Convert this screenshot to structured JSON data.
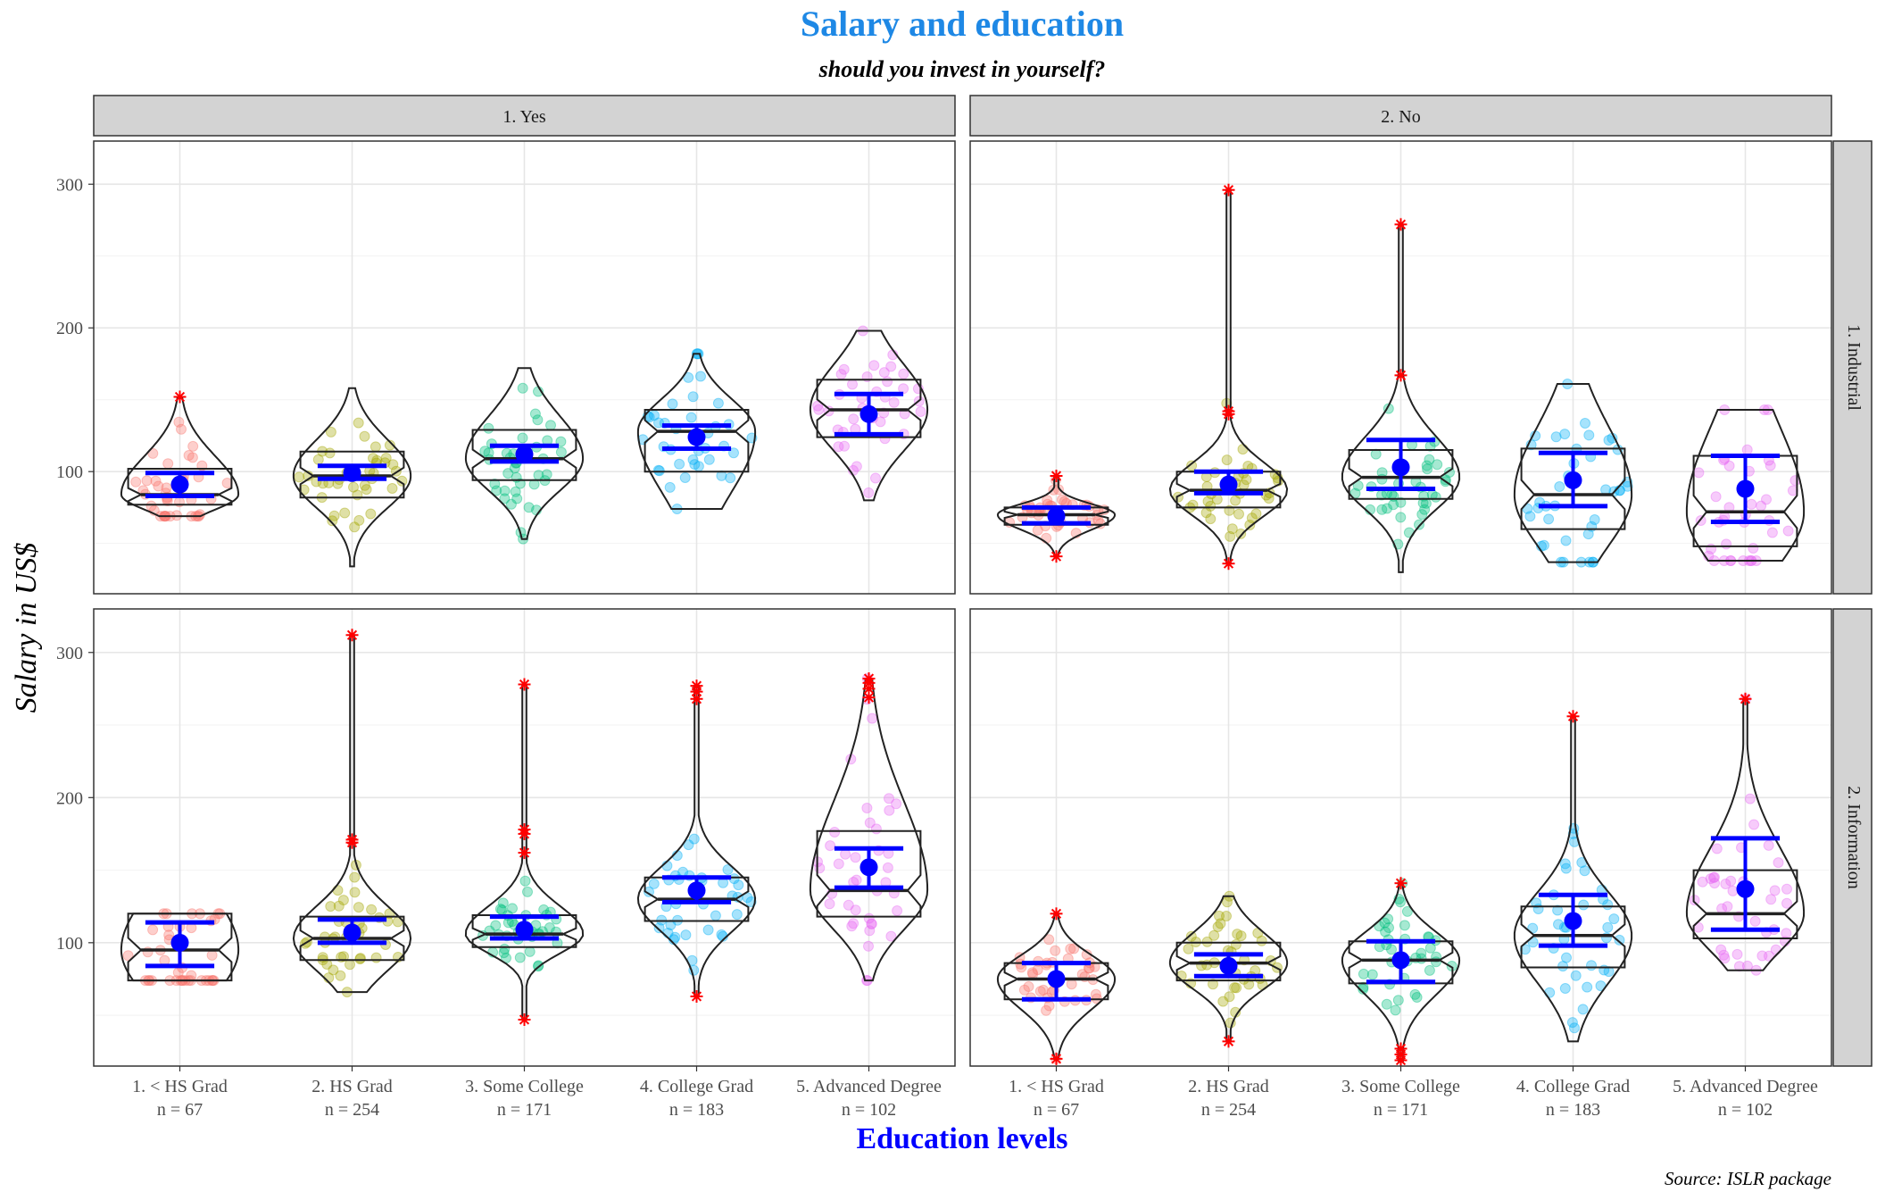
{
  "chart_data": {
    "type": "violin",
    "title": "Salary and education",
    "subtitle": "should you invest in yourself?",
    "xlabel": "Education levels",
    "ylabel": "Salary in US$",
    "caption": "Source: ISLR package",
    "ylim": [
      15,
      330
    ],
    "y_ticks": [
      100,
      200,
      300
    ],
    "grid": true,
    "legend": "none",
    "colors": {
      "title": "#1e88e5",
      "xlabel": "#0000ff",
      "stats": "#0000ff",
      "outlier": "#ff0000",
      "strip_fill": "#d3d3d3",
      "grid": "#ebebeb",
      "categories": [
        "#f8766d",
        "#a3a500",
        "#00bf7d",
        "#00b0f6",
        "#e76bf3"
      ]
    },
    "col_facets": [
      "1. Yes",
      "2. No"
    ],
    "row_facets": [
      "1. Industrial",
      "2. Information"
    ],
    "categories": [
      "1. < HS Grad",
      "2. HS Grad",
      "3. Some College",
      "4. College Grad",
      "5. Advanced Degree"
    ],
    "category_counts": [
      "n =  67",
      "n =  254",
      "n =  171",
      "n =  183",
      "n =  102"
    ],
    "panels": [
      {
        "col": "1. Yes",
        "row": "1. Industrial",
        "groups": [
          {
            "category": "1. < HS Grad",
            "min": 69,
            "max": 152,
            "q1": 77,
            "median": 84,
            "q3": 102,
            "mean": 91,
            "ci": [
              83,
              99
            ],
            "outliers": [
              152
            ]
          },
          {
            "category": "2. HS Grad",
            "min": 34,
            "max": 158,
            "q1": 82,
            "median": 97,
            "q3": 114,
            "mean": 99,
            "ci": [
              95,
              104
            ],
            "outliers": []
          },
          {
            "category": "3. Some College",
            "min": 53,
            "max": 172,
            "q1": 94,
            "median": 109,
            "q3": 129,
            "mean": 112,
            "ci": [
              107,
              118
            ],
            "outliers": []
          },
          {
            "category": "4. College Grad",
            "min": 74,
            "max": 182,
            "q1": 100,
            "median": 128,
            "q3": 143,
            "mean": 124,
            "ci": [
              116,
              132
            ],
            "outliers": []
          },
          {
            "category": "5. Advanced Degree",
            "min": 80,
            "max": 198,
            "q1": 124,
            "median": 143,
            "q3": 164,
            "mean": 140,
            "ci": [
              126,
              154
            ],
            "outliers": []
          }
        ]
      },
      {
        "col": "2. No",
        "row": "1. Industrial",
        "groups": [
          {
            "category": "1. < HS Grad",
            "min": 41,
            "max": 97,
            "q1": 63,
            "median": 70,
            "q3": 75,
            "mean": 69,
            "ci": [
              64,
              75
            ],
            "outliers": [
              41,
              97
            ]
          },
          {
            "category": "2. HS Grad",
            "min": 36,
            "max": 296,
            "q1": 75,
            "median": 87,
            "q3": 100,
            "mean": 91,
            "ci": [
              85,
              100
            ],
            "outliers": [
              36,
              140,
              142,
              296
            ]
          },
          {
            "category": "3. Some College",
            "min": 30,
            "max": 272,
            "q1": 81,
            "median": 96,
            "q3": 115,
            "mean": 103,
            "ci": [
              88,
              122
            ],
            "outliers": [
              167,
              272
            ]
          },
          {
            "category": "4. College Grad",
            "min": 37,
            "max": 161,
            "q1": 60,
            "median": 84,
            "q3": 116,
            "mean": 94,
            "ci": [
              76,
              113
            ],
            "outliers": []
          },
          {
            "category": "5. Advanced Degree",
            "min": 38,
            "max": 143,
            "q1": 48,
            "median": 72,
            "q3": 111,
            "mean": 88,
            "ci": [
              65,
              111
            ],
            "outliers": []
          }
        ]
      },
      {
        "col": "1. Yes",
        "row": "2. Information",
        "groups": [
          {
            "category": "1. < HS Grad",
            "min": 74,
            "max": 120,
            "q1": 74,
            "median": 95,
            "q3": 120,
            "mean": 100,
            "ci": [
              84,
              114
            ],
            "outliers": []
          },
          {
            "category": "2. HS Grad",
            "min": 66,
            "max": 312,
            "q1": 88,
            "median": 103,
            "q3": 118,
            "mean": 107,
            "ci": [
              100,
              116
            ],
            "outliers": [
              169,
              171,
              312
            ]
          },
          {
            "category": "3. Some College",
            "min": 47,
            "max": 278,
            "q1": 97,
            "median": 106,
            "q3": 119,
            "mean": 109,
            "ci": [
              103,
              118
            ],
            "outliers": [
              47,
              162,
              175,
              178,
              278
            ]
          },
          {
            "category": "4. College Grad",
            "min": 63,
            "max": 277,
            "q1": 115,
            "median": 130,
            "q3": 145,
            "mean": 136,
            "ci": [
              128,
              145
            ],
            "outliers": [
              63,
              268,
              273,
              277
            ]
          },
          {
            "category": "5. Advanced Degree",
            "min": 74,
            "max": 282,
            "q1": 118,
            "median": 136,
            "q3": 177,
            "mean": 152,
            "ci": [
              138,
              165
            ],
            "outliers": [
              269,
              275,
              279,
              282
            ]
          }
        ]
      },
      {
        "col": "2. No",
        "row": "2. Information",
        "groups": [
          {
            "category": "1. < HS Grad",
            "min": 20,
            "max": 120,
            "q1": 61,
            "median": 75,
            "q3": 86,
            "mean": 75,
            "ci": [
              61,
              86
            ],
            "outliers": [
              20,
              120
            ]
          },
          {
            "category": "2. HS Grad",
            "min": 32,
            "max": 132,
            "q1": 74,
            "median": 86,
            "q3": 100,
            "mean": 84,
            "ci": [
              77,
              92
            ],
            "outliers": [
              32
            ]
          },
          {
            "category": "3. Some College",
            "min": 18,
            "max": 141,
            "q1": 72,
            "median": 88,
            "q3": 101,
            "mean": 88,
            "ci": [
              73,
              101
            ],
            "outliers": [
              19,
              23,
              27,
              141
            ]
          },
          {
            "category": "4. College Grad",
            "min": 32,
            "max": 256,
            "q1": 83,
            "median": 105,
            "q3": 125,
            "mean": 115,
            "ci": [
              98,
              133
            ],
            "outliers": [
              256
            ]
          },
          {
            "category": "5. Advanced Degree",
            "min": 81,
            "max": 268,
            "q1": 103,
            "median": 120,
            "q3": 150,
            "mean": 137,
            "ci": [
              109,
              172
            ],
            "outliers": [
              268
            ]
          }
        ]
      }
    ]
  }
}
